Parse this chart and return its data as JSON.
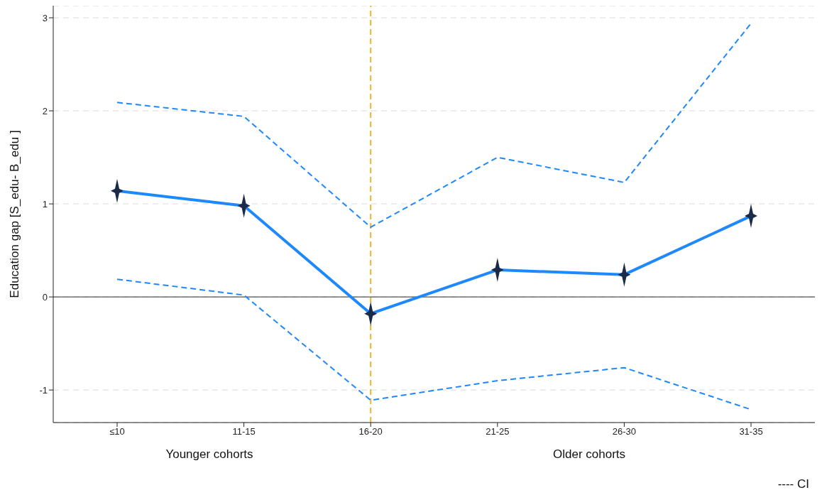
{
  "chart_data": {
    "type": "line",
    "ylabel": "Education gap [S_edu- B_edu ]",
    "categories": [
      "≤10",
      "11-15",
      "16-20",
      "21-25",
      "26-30",
      "31-35"
    ],
    "series": [
      {
        "color": "#1e88ff",
        "values": [
          1.14,
          0.98,
          -0.18,
          0.29,
          0.24,
          0.87
        ],
        "marker": "star",
        "line_style": "solid"
      },
      {
        "color": "#1e88ff",
        "values": [
          2.09,
          1.94,
          0.75,
          1.5,
          1.23,
          2.94
        ],
        "marker": "none",
        "line_style": "dashed"
      },
      {
        "color": "#1e88ff",
        "values": [
          0.19,
          0.02,
          -1.11,
          -0.9,
          -0.76,
          -1.21
        ],
        "marker": "none",
        "line_style": "dashed"
      }
    ],
    "ylim": [
      -1.35,
      3.13
    ],
    "yticks": [
      -1,
      0,
      1,
      2,
      3
    ],
    "grid": "y",
    "ref_lines": [
      {
        "axis": "x",
        "value": "16-20",
        "color": "#f0b429",
        "line_style": "dashed"
      },
      {
        "axis": "y",
        "value": 0,
        "color": "#555555",
        "line_style": "solid"
      }
    ],
    "annotations": [
      "Younger cohorts",
      "Older cohorts",
      "---- CI"
    ]
  }
}
